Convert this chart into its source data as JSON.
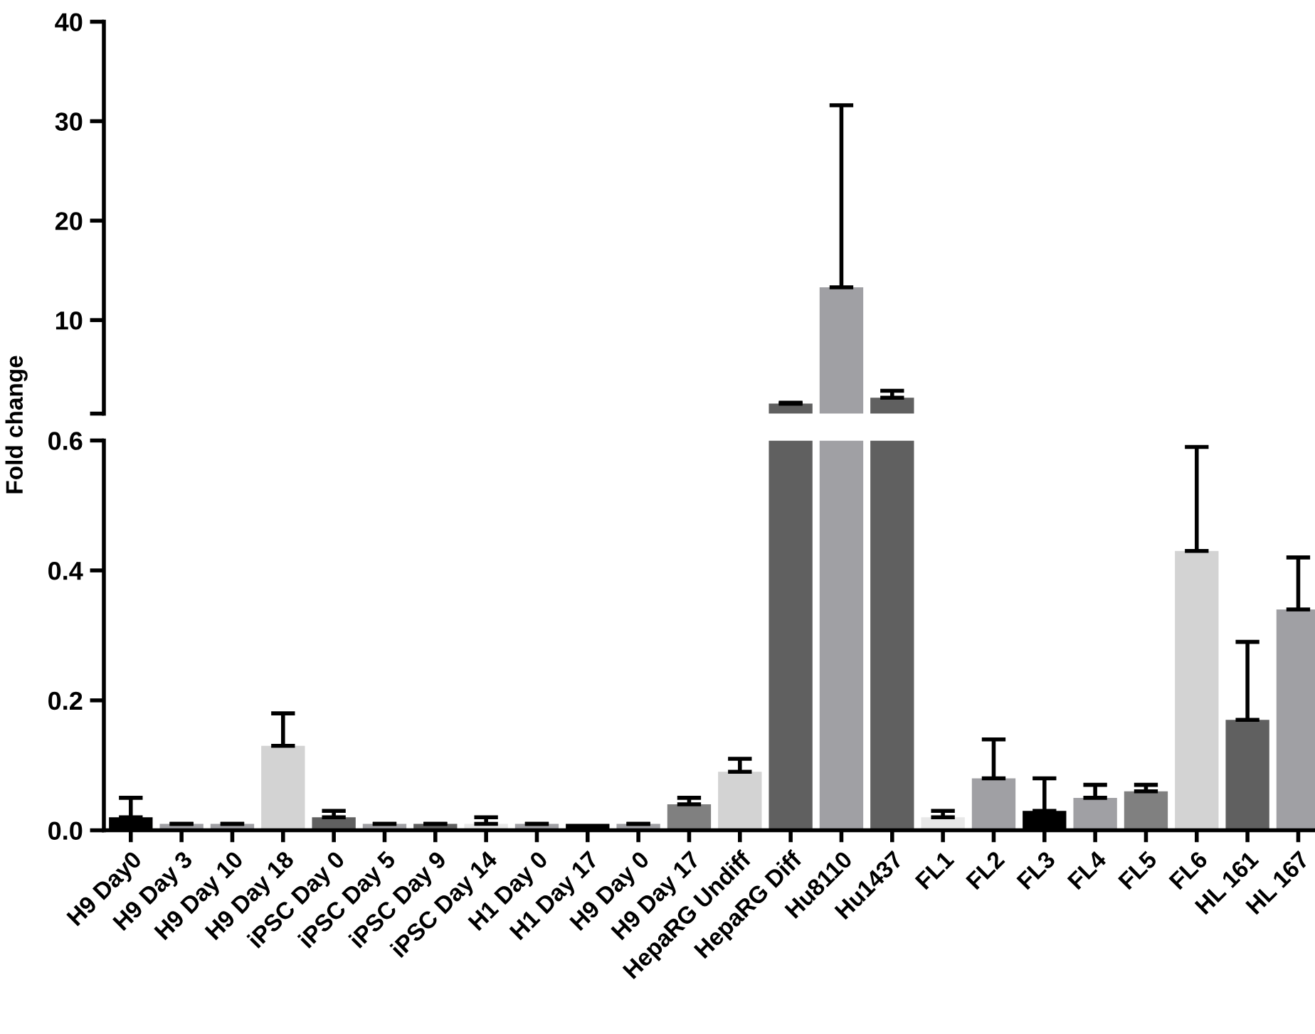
{
  "chart_data": [
    {
      "type": "bar",
      "categories": [
        null,
        null,
        null,
        null,
        null,
        null,
        null,
        null,
        null,
        null,
        null,
        null,
        null,
        null,
        null,
        null,
        null,
        null,
        null,
        null,
        null,
        null,
        null,
        null
      ],
      "values": [
        null,
        null,
        null,
        null,
        null,
        null,
        null,
        null,
        null,
        null,
        null,
        null,
        null,
        1.6,
        13.3,
        2.2,
        null,
        null,
        null,
        null,
        null,
        null,
        null,
        null
      ],
      "errors": [
        null,
        null,
        null,
        null,
        null,
        null,
        null,
        null,
        null,
        null,
        null,
        null,
        null,
        [
          1.6,
          1.7
        ],
        [
          13.3,
          31.6
        ],
        [
          2.2,
          2.9
        ],
        null,
        null,
        null,
        null,
        null,
        null,
        null,
        null
      ],
      "colors": [
        "#000000",
        "#a0a0a4",
        "#a0a0a4",
        "#d3d3d3",
        "#606060",
        "#a0a0a4",
        "#606060",
        "#e8e8e8",
        "#a0a0a4",
        "#000000",
        "#a0a0a4",
        "#808080",
        "#d3d3d3",
        "#606060",
        "#a0a0a4",
        "#606060",
        "#e8e8e8",
        "#a0a0a4",
        "#000000",
        "#a0a0a4",
        "#808080",
        "#d3d3d3",
        "#606060",
        "#a0a0a4"
      ],
      "ylim": [
        0.6,
        40
      ],
      "yticks": [
        {
          "value": 0.6,
          "label": null
        },
        10,
        20,
        30,
        40
      ],
      "tick_labels": "y"
    },
    {
      "type": "bar",
      "ylabel": "Fold change",
      "categories": [
        "H9 Day0",
        "H9 Day 3",
        "H9 Day 10",
        "H9 Day 18",
        "iPSC Day 0",
        "iPSC Day 5",
        "iPSC Day 9",
        "iPSC Day 14",
        "H1 Day 0",
        "H1 Day 17",
        "H9 Day 0",
        "H9 Day 17",
        "HepaRG Undiff",
        "HepaRG Diff",
        "Hu8110",
        "Hu1437",
        "FL1",
        "FL2",
        "FL3",
        "FL4",
        "FL5",
        "FL6",
        "HL 161",
        "HL 167"
      ],
      "values": [
        0.02,
        0.01,
        0.01,
        0.13,
        0.02,
        0.01,
        0.01,
        0.01,
        0.01,
        0.01,
        0.01,
        0.04,
        0.09,
        0.6,
        0.6,
        0.6,
        0.02,
        0.08,
        0.03,
        0.05,
        0.06,
        0.43,
        0.17,
        0.34
      ],
      "errors": [
        [
          0.02,
          0.05
        ],
        [
          0.01,
          0.01
        ],
        [
          0.01,
          0.01
        ],
        [
          0.13,
          0.18
        ],
        [
          0.02,
          0.03
        ],
        [
          0.01,
          0.01
        ],
        [
          0.01,
          0.01
        ],
        [
          0.01,
          0.02
        ],
        [
          0.01,
          0.01
        ],
        null,
        [
          0.01,
          0.01
        ],
        [
          0.04,
          0.05
        ],
        [
          0.09,
          0.11
        ],
        null,
        null,
        null,
        [
          0.02,
          0.03
        ],
        [
          0.08,
          0.14
        ],
        [
          0.03,
          0.08
        ],
        [
          0.05,
          0.07
        ],
        [
          0.06,
          0.07
        ],
        [
          0.43,
          0.59
        ],
        [
          0.17,
          0.29
        ],
        [
          0.34,
          0.42
        ]
      ],
      "colors": [
        "#000000",
        "#a0a0a4",
        "#a0a0a4",
        "#d3d3d3",
        "#606060",
        "#a0a0a4",
        "#606060",
        "#e8e8e8",
        "#a0a0a4",
        "#000000",
        "#a0a0a4",
        "#808080",
        "#d3d3d3",
        "#606060",
        "#a0a0a4",
        "#606060",
        "#e8e8e8",
        "#a0a0a4",
        "#000000",
        "#a0a0a4",
        "#808080",
        "#d3d3d3",
        "#606060",
        "#a0a0a4"
      ],
      "ylim": [
        0,
        0.6
      ],
      "yticks": [
        {
          "value": 0,
          "label": "0.0"
        },
        0.2,
        0.4,
        0.6
      ]
    }
  ]
}
